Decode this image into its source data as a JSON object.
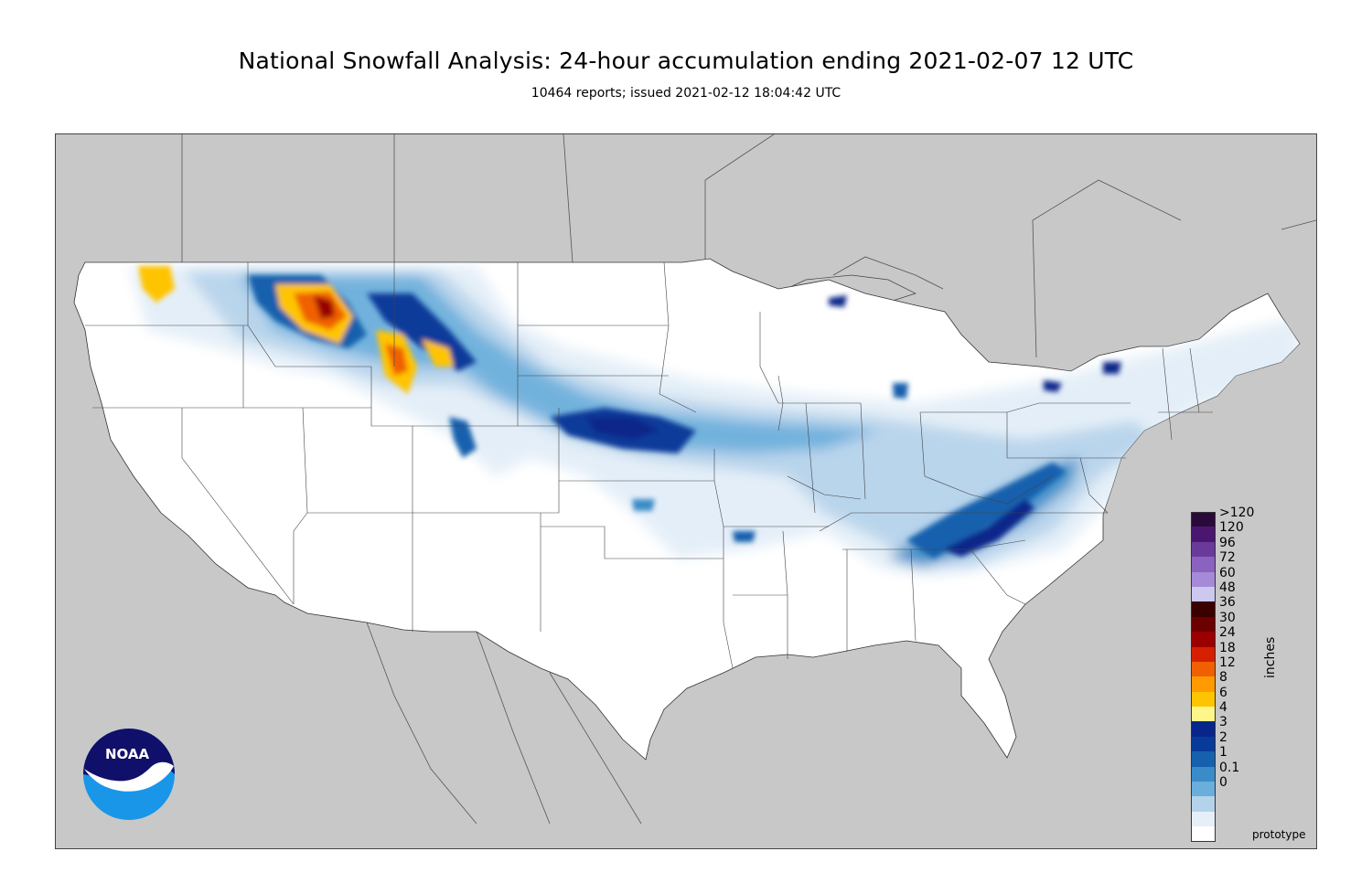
{
  "header": {
    "title": "National Snowfall Analysis: 24-hour accumulation ending 2021-02-07 12 UTC",
    "subtitle": "10464 reports; issued 2021-02-12 18:04:42 UTC"
  },
  "map": {
    "background_color": "#c8c8c8",
    "land_color": "#ffffff",
    "region": "Contiguous United States"
  },
  "legend": {
    "units": "inches",
    "entries": [
      {
        "label": ">120",
        "color": "#2a0a3a"
      },
      {
        "label": "120",
        "color": "#4b1670"
      },
      {
        "label": "96",
        "color": "#6a3a9a"
      },
      {
        "label": "72",
        "color": "#8a62c0"
      },
      {
        "label": "60",
        "color": "#a58ad8"
      },
      {
        "label": "48",
        "color": "#ccc8f0"
      },
      {
        "label": "36",
        "color": "#3a0000"
      },
      {
        "label": "30",
        "color": "#6a0000"
      },
      {
        "label": "24",
        "color": "#9a0000"
      },
      {
        "label": "18",
        "color": "#d42000"
      },
      {
        "label": "12",
        "color": "#f06000"
      },
      {
        "label": "8",
        "color": "#ff9a00"
      },
      {
        "label": "6",
        "color": "#ffc400"
      },
      {
        "label": "4",
        "color": "#fff68a"
      },
      {
        "label": "3",
        "color": "#08268a"
      },
      {
        "label": "2",
        "color": "#083a9a"
      },
      {
        "label": "1",
        "color": "#1561ad"
      },
      {
        "label": "0.1",
        "color": "#3a8cc8"
      },
      {
        "label": "0",
        "color": "#6aaedc"
      }
    ],
    "extra_swatches": [
      "#b4d2ea",
      "#e6eff8",
      "#ffffff"
    ]
  },
  "logo": {
    "text": "NOAA",
    "top_color": "#10106a",
    "bottom_color": "#1a96e8"
  },
  "footer": {
    "note": "prototype"
  }
}
